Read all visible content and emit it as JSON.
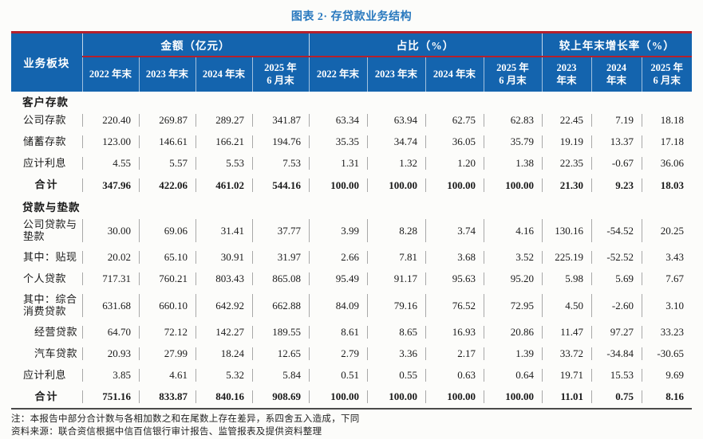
{
  "page": {
    "title": "图表 2· 存贷款业务结构"
  },
  "colors": {
    "header_bg": "#1464ae",
    "accent_red": "#b5202c",
    "title_blue": "#2878be",
    "grid_gray": "#a8a8a8"
  },
  "table": {
    "corner_label": "业务板块",
    "groups": [
      {
        "label": "金额（亿元）",
        "columns": [
          "2022 年末",
          "2023 年末",
          "2024 年末",
          "2025 年\n6 月末"
        ]
      },
      {
        "label": "占比（%）",
        "columns": [
          "2022 年末",
          "2023 年末",
          "2024 年末",
          "2025 年\n6 月末"
        ]
      },
      {
        "label": "较上年末增长率（%）",
        "columns": [
          "2023\n年末",
          "2024\n年末",
          "2025 年\n6 月末"
        ]
      }
    ],
    "rows": [
      {
        "type": "section",
        "label": "客户存款"
      },
      {
        "type": "data",
        "label": "公司存款",
        "values": [
          "220.40",
          "269.87",
          "289.27",
          "341.87",
          "63.34",
          "63.94",
          "62.75",
          "62.83",
          "22.45",
          "7.19",
          "18.18"
        ]
      },
      {
        "type": "data",
        "label": "储蓄存款",
        "values": [
          "123.00",
          "146.61",
          "166.21",
          "194.76",
          "35.35",
          "34.74",
          "36.05",
          "35.79",
          "19.19",
          "13.37",
          "17.18"
        ]
      },
      {
        "type": "data",
        "label": "应计利息",
        "values": [
          "4.55",
          "5.57",
          "5.53",
          "7.53",
          "1.31",
          "1.32",
          "1.20",
          "1.38",
          "22.35",
          "-0.67",
          "36.06"
        ]
      },
      {
        "type": "total",
        "label": "合计",
        "values": [
          "347.96",
          "422.06",
          "461.02",
          "544.16",
          "100.00",
          "100.00",
          "100.00",
          "100.00",
          "21.30",
          "9.23",
          "18.03"
        ]
      },
      {
        "type": "section",
        "label": "贷款与垫款"
      },
      {
        "type": "data",
        "tall": true,
        "label": "公司贷款与垫款",
        "values": [
          "30.00",
          "69.06",
          "31.41",
          "37.77",
          "3.99",
          "8.28",
          "3.74",
          "4.16",
          "130.16",
          "-54.52",
          "20.25"
        ]
      },
      {
        "type": "data",
        "label": "其中：贴现",
        "values": [
          "20.02",
          "65.10",
          "30.91",
          "31.97",
          "2.66",
          "7.81",
          "3.68",
          "3.52",
          "225.19",
          "-52.52",
          "3.43"
        ]
      },
      {
        "type": "data",
        "label": "个人贷款",
        "values": [
          "717.31",
          "760.21",
          "803.43",
          "865.08",
          "95.49",
          "91.17",
          "95.63",
          "95.20",
          "5.98",
          "5.69",
          "7.67"
        ]
      },
      {
        "type": "data",
        "tall": true,
        "label": "其中：综合消费贷款",
        "values": [
          "631.68",
          "660.10",
          "642.92",
          "662.88",
          "84.09",
          "79.16",
          "76.52",
          "72.95",
          "4.50",
          "-2.60",
          "3.10"
        ]
      },
      {
        "type": "data",
        "indent": true,
        "label": "经营贷款",
        "values": [
          "64.70",
          "72.12",
          "142.27",
          "189.55",
          "8.61",
          "8.65",
          "16.93",
          "20.86",
          "11.47",
          "97.27",
          "33.23"
        ]
      },
      {
        "type": "data",
        "indent": true,
        "label": "汽车贷款",
        "values": [
          "20.93",
          "27.99",
          "18.24",
          "12.65",
          "2.79",
          "3.36",
          "2.17",
          "1.39",
          "33.72",
          "-34.84",
          "-30.65"
        ]
      },
      {
        "type": "data",
        "label": "应计利息",
        "values": [
          "3.85",
          "4.61",
          "5.32",
          "5.84",
          "0.51",
          "0.55",
          "0.63",
          "0.64",
          "19.71",
          "15.53",
          "9.69"
        ]
      },
      {
        "type": "total",
        "label": "合计",
        "values": [
          "751.16",
          "833.87",
          "840.16",
          "908.69",
          "100.00",
          "100.00",
          "100.00",
          "100.00",
          "11.01",
          "0.75",
          "8.16"
        ]
      }
    ]
  },
  "notes": [
    "注：本报告中部分合计数与各相加数之和在尾数上存在差异，系四舍五入造成，下同",
    "资料来源：联合资信根据中信百信银行审计报告、监管报表及提供资料整理"
  ]
}
